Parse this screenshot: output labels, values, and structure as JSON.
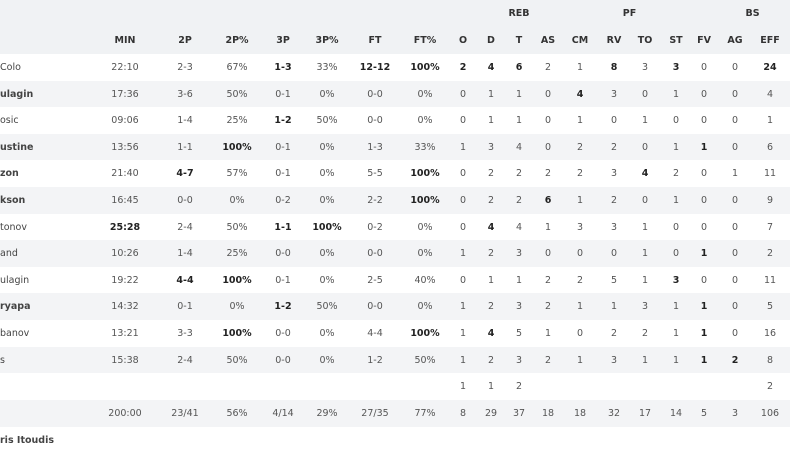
{
  "header_groups": [
    {
      "label": "REB",
      "col": 9
    },
    {
      "label": "PF",
      "col": 12.5
    },
    {
      "label": "BS",
      "col": 16.5
    }
  ],
  "columns": [
    "MIN",
    "2P",
    "2P%",
    "3P",
    "3P%",
    "FT",
    "FT%",
    "O",
    "D",
    "T",
    "AS",
    "CM",
    "RV",
    "TO",
    "ST",
    "FV",
    "AG",
    "EFF"
  ],
  "rows": [
    {
      "player": "Colo",
      "stats": [
        "22:10",
        "2-3",
        "67%",
        "1-3",
        "33%",
        "12-12",
        "100%",
        "2",
        "4",
        "6",
        "2",
        "1",
        "8",
        "3",
        "3",
        "0",
        "0",
        "24"
      ],
      "bold": [
        3,
        5,
        6,
        7,
        8,
        9,
        12,
        14,
        17
      ]
    },
    {
      "player": "ulagin",
      "player_bold": true,
      "stats": [
        "17:36",
        "3-6",
        "50%",
        "0-1",
        "0%",
        "0-0",
        "0%",
        "0",
        "1",
        "1",
        "0",
        "4",
        "3",
        "0",
        "1",
        "0",
        "0",
        "4"
      ],
      "bold": [
        11
      ]
    },
    {
      "player": "osic",
      "stats": [
        "09:06",
        "1-4",
        "25%",
        "1-2",
        "50%",
        "0-0",
        "0%",
        "0",
        "1",
        "1",
        "0",
        "1",
        "0",
        "1",
        "0",
        "0",
        "0",
        "1"
      ],
      "bold": [
        3
      ]
    },
    {
      "player": "ustine",
      "player_bold": true,
      "stats": [
        "13:56",
        "1-1",
        "100%",
        "0-1",
        "0%",
        "1-3",
        "33%",
        "1",
        "3",
        "4",
        "0",
        "2",
        "2",
        "0",
        "1",
        "1",
        "0",
        "6"
      ],
      "bold": [
        2,
        15
      ]
    },
    {
      "player": "zon",
      "player_bold": true,
      "stats": [
        "21:40",
        "4-7",
        "57%",
        "0-1",
        "0%",
        "5-5",
        "100%",
        "0",
        "2",
        "2",
        "2",
        "2",
        "3",
        "4",
        "2",
        "0",
        "1",
        "11"
      ],
      "bold": [
        1,
        6,
        13
      ]
    },
    {
      "player": "kson",
      "player_bold": true,
      "stats": [
        "16:45",
        "0-0",
        "0%",
        "0-2",
        "0%",
        "2-2",
        "100%",
        "0",
        "2",
        "2",
        "6",
        "1",
        "2",
        "0",
        "1",
        "0",
        "0",
        "9"
      ],
      "bold": [
        6,
        10
      ]
    },
    {
      "player": "tonov",
      "stats": [
        "25:28",
        "2-4",
        "50%",
        "1-1",
        "100%",
        "0-2",
        "0%",
        "0",
        "4",
        "4",
        "1",
        "3",
        "3",
        "1",
        "0",
        "0",
        "0",
        "7"
      ],
      "bold": [
        0,
        3,
        4,
        8
      ]
    },
    {
      "player": "and",
      "stats": [
        "10:26",
        "1-4",
        "25%",
        "0-0",
        "0%",
        "0-0",
        "0%",
        "1",
        "2",
        "3",
        "0",
        "0",
        "0",
        "1",
        "0",
        "1",
        "0",
        "2"
      ],
      "bold": [
        15
      ]
    },
    {
      "player": "ulagin",
      "stats": [
        "19:22",
        "4-4",
        "100%",
        "0-1",
        "0%",
        "2-5",
        "40%",
        "0",
        "1",
        "1",
        "2",
        "2",
        "5",
        "1",
        "3",
        "0",
        "0",
        "11"
      ],
      "bold": [
        1,
        2,
        14
      ]
    },
    {
      "player": "ryapa",
      "player_bold": true,
      "stats": [
        "14:32",
        "0-1",
        "0%",
        "1-2",
        "50%",
        "0-0",
        "0%",
        "1",
        "2",
        "3",
        "2",
        "1",
        "1",
        "3",
        "1",
        "1",
        "0",
        "5"
      ],
      "bold": [
        3,
        15
      ]
    },
    {
      "player": "banov",
      "stats": [
        "13:21",
        "3-3",
        "100%",
        "0-0",
        "0%",
        "4-4",
        "100%",
        "1",
        "4",
        "5",
        "1",
        "0",
        "2",
        "2",
        "1",
        "1",
        "0",
        "16"
      ],
      "bold": [
        2,
        6,
        8,
        15
      ]
    },
    {
      "player": "s",
      "stats": [
        "15:38",
        "2-4",
        "50%",
        "0-0",
        "0%",
        "1-2",
        "50%",
        "1",
        "2",
        "3",
        "2",
        "1",
        "3",
        "1",
        "1",
        "1",
        "2",
        "8"
      ],
      "bold": [
        15,
        16
      ]
    }
  ],
  "team_row": [
    null,
    null,
    null,
    null,
    null,
    null,
    null,
    "1",
    "1",
    "2",
    null,
    null,
    null,
    null,
    null,
    null,
    null,
    "2"
  ],
  "totals": [
    "200:00",
    "23/41",
    "56%",
    "4/14",
    "29%",
    "27/35",
    "77%",
    "8",
    "29",
    "37",
    "18",
    "18",
    "32",
    "17",
    "14",
    "5",
    "3",
    "106"
  ],
  "coach": "ris Itoudis"
}
